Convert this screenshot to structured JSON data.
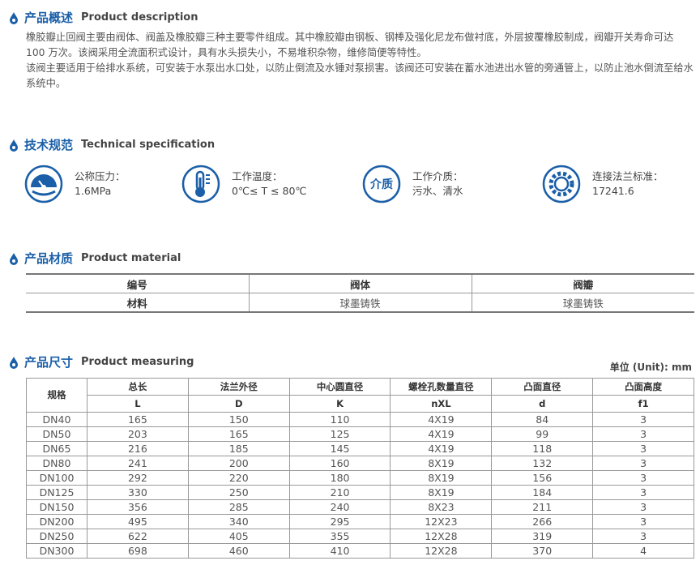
{
  "description": {
    "title_cn": "产品概述",
    "title_en": "Product description",
    "paragraphs": [
      "橡胶瓣止回阀主要由阀体、阀盖及橡胶瓣三种主要零件组成。其中橡胶瓣由钢板、钢棒及强化尼龙布做衬底，外层披覆橡胶制成，阀瓣开关寿命可达 100 万次。该阀采用全流面积式设计，具有水头损失小，不易堆积杂物，维修简便等特性。",
      "该阀主要适用于给排水系统，可安装于水泵出水口处，以防止倒流及水锤对泵损害。该阀还可安装在蓄水池进出水管的旁通管上，以防止池水倒流至给水系统中。"
    ]
  },
  "spec": {
    "title_cn": "技术规范",
    "title_en": "Technical specification",
    "icon_text": "介质",
    "items": [
      {
        "label": "公称压力：",
        "value": "1.6MPa"
      },
      {
        "label": "工作温度：",
        "value": "0℃≤ T ≤ 80℃"
      },
      {
        "label": "工作介质：",
        "value": "污水、清水"
      },
      {
        "label": "连接法兰标准：",
        "value": "17241.6"
      }
    ]
  },
  "material": {
    "title_cn": "产品材质",
    "title_en": "Product material",
    "rows": [
      [
        "编号",
        "阀体",
        "阀瓣"
      ],
      [
        "材料",
        "球墨铸铁",
        "球墨铸铁"
      ]
    ]
  },
  "measuring": {
    "title_cn": "产品尺寸",
    "title_en": "Product measuring",
    "unit": "单位 (Unit): mm",
    "header": [
      "规格",
      "总长",
      "法兰外径",
      "中心圆直径",
      "螺栓孔数量直径",
      "凸面直径",
      "凸面高度"
    ],
    "symbols": [
      "L",
      "D",
      "K",
      "nXL",
      "d",
      "f1"
    ],
    "rows": [
      [
        "DN40",
        165,
        150,
        110,
        "4X19",
        84,
        3
      ],
      [
        "DN50",
        203,
        165,
        125,
        "4X19",
        99,
        3
      ],
      [
        "DN65",
        216,
        185,
        145,
        "4X19",
        118,
        3
      ],
      [
        "DN80",
        241,
        200,
        160,
        "8X19",
        132,
        3
      ],
      [
        "DN100",
        292,
        220,
        180,
        "8X19",
        156,
        3
      ],
      [
        "DN125",
        330,
        250,
        210,
        "8X19",
        184,
        3
      ],
      [
        "DN150",
        356,
        285,
        240,
        "8X23",
        211,
        3
      ],
      [
        "DN200",
        495,
        340,
        295,
        "12X23",
        266,
        3
      ],
      [
        "DN250",
        622,
        405,
        355,
        "12X28",
        319,
        3
      ],
      [
        "DN300",
        698,
        460,
        410,
        "12X28",
        370,
        4
      ]
    ]
  }
}
